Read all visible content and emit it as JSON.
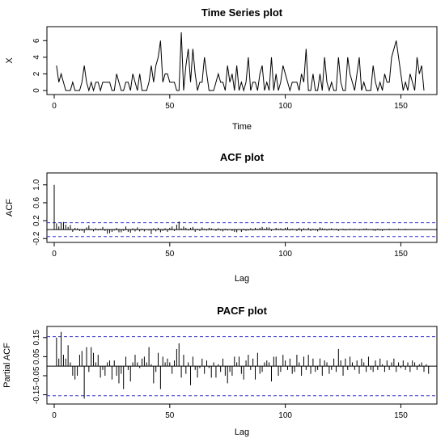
{
  "chart_data": [
    {
      "type": "line",
      "title": "Time Series plot",
      "xlabel": "Time",
      "ylabel": "X",
      "xlim": [
        0,
        160
      ],
      "ylim": [
        0,
        7
      ],
      "xticks": [
        "0",
        "50",
        "100",
        "150"
      ],
      "yticks": [
        "0",
        "2",
        "4",
        "6"
      ],
      "x_start": 1,
      "values": [
        3,
        1,
        2,
        1,
        0,
        0,
        0,
        1,
        0,
        0,
        0,
        1,
        3,
        1,
        0,
        1,
        0,
        1,
        1,
        0,
        1,
        1,
        1,
        1,
        0,
        0,
        2,
        1,
        0,
        0,
        1,
        1,
        0,
        2,
        1,
        0,
        2,
        0,
        0,
        0,
        1,
        3,
        1,
        3,
        4,
        6,
        1,
        2,
        2,
        1,
        1,
        1,
        0,
        0,
        7,
        0,
        3,
        5,
        1,
        5,
        2,
        0,
        1,
        1,
        4,
        2,
        0,
        0,
        0,
        1,
        2,
        1,
        1,
        0,
        3,
        1,
        2,
        0,
        3,
        0,
        1,
        0,
        1,
        4,
        0,
        1,
        1,
        0,
        2,
        3,
        0,
        1,
        0,
        4,
        0,
        2,
        0,
        1,
        3,
        2,
        1,
        0,
        1,
        1,
        1,
        0,
        2,
        1,
        5,
        0,
        0,
        2,
        0,
        0,
        2,
        0,
        4,
        1,
        0,
        1,
        0,
        0,
        4,
        1,
        0,
        0,
        4,
        2,
        1,
        0,
        2,
        4,
        0,
        1,
        0,
        0,
        0,
        3,
        1,
        0,
        1,
        0,
        2,
        1,
        1,
        4,
        5,
        6,
        4,
        2,
        0,
        1,
        0,
        2,
        1,
        0,
        4,
        2,
        3,
        0
      ]
    },
    {
      "type": "bar",
      "title": "ACF plot",
      "xlabel": "Lag",
      "ylabel": "ACF",
      "xlim": [
        0,
        160
      ],
      "ylim": [
        -0.25,
        1.05
      ],
      "xticks": [
        "0",
        "50",
        "100",
        "150"
      ],
      "yticks": [
        "-0.2",
        "0.2",
        "0.6",
        "1.0"
      ],
      "ci": [
        0.155,
        -0.155
      ],
      "x_start": 0,
      "values": [
        1.0,
        0.14,
        0.07,
        0.16,
        0.17,
        0.11,
        0.06,
        0.1,
        -0.05,
        0.04,
        0.03,
        -0.03,
        -0.03,
        -0.07,
        0.05,
        0.09,
        0.02,
        -0.04,
        0.03,
        -0.02,
        0.02,
        0.06,
        -0.03,
        -0.09,
        -0.08,
        -0.05,
        -0.02,
        0.04,
        -0.06,
        -0.06,
        -0.03,
        0.07,
        -0.05,
        -0.07,
        0.03,
        -0.04,
        0.05,
        -0.04,
        0.02,
        -0.04,
        0.01,
        -0.02,
        -0.1,
        0.03,
        -0.04,
        0.04,
        -0.06,
        -0.03,
        0.03,
        -0.05,
        0.04,
        0.07,
        -0.03,
        0.11,
        0.18,
        0.03,
        0.07,
        0.04,
        -0.02,
        0.04,
        0.06,
        -0.05,
        0.02,
        -0.03,
        0.05,
        0.02,
        -0.02,
        0.04,
        0.03,
        0.01,
        -0.03,
        0.03,
        -0.02,
        -0.04,
        0.02,
        -0.02,
        0.01,
        -0.03,
        -0.05,
        -0.06,
        0.01,
        -0.05,
        0.02,
        -0.03,
        -0.02,
        0.03,
        -0.02,
        0.04,
        0.02,
        0.04,
        0.06,
        0.02,
        0.05,
        0.05,
        -0.03,
        0.01,
        0.04,
        0.02,
        0.03,
        -0.02,
        0.04,
        0.05,
        -0.02,
        0.02,
        0.01,
        -0.03,
        0.04,
        -0.04,
        0.03,
        -0.01,
        0.04,
        -0.03,
        0.02,
        -0.02,
        -0.04,
        0.05,
        0.03,
        0.02,
        -0.02,
        0.02,
        0.03,
        -0.01,
        0.02,
        -0.03,
        0.01,
        0.02,
        -0.02,
        0.01,
        0.02,
        -0.01,
        0.02,
        0.01,
        -0.02,
        -0.01,
        0.02,
        0.03,
        -0.01,
        0.01,
        -0.02,
        -0.03,
        0.02,
        -0.02,
        -0.03,
        -0.01,
        0.01,
        0.02,
        -0.01,
        0.01,
        0.01,
        0.02,
        -0.01,
        0.01,
        0.02,
        -0.01,
        0.01,
        0.01,
        0.01,
        0.01,
        0.0,
        0.01
      ]
    },
    {
      "type": "bar",
      "title": "PACF plot",
      "xlabel": "Lag",
      "ylabel": "Partial ACF",
      "xlim": [
        0,
        160
      ],
      "ylim": [
        -0.19,
        0.2
      ],
      "xticks": [
        "0",
        "50",
        "100",
        "150"
      ],
      "yticks": [
        "-0.15",
        "-0.05",
        "0.05",
        "0.15"
      ],
      "ci": [
        0.155,
        -0.155
      ],
      "x_start": 1,
      "values": [
        0.15,
        0.04,
        0.18,
        0.06,
        0.04,
        0.11,
        0.02,
        -0.05,
        -0.07,
        -0.05,
        0.06,
        0.08,
        -0.17,
        0.1,
        -0.03,
        0.1,
        0.07,
        0.02,
        0.06,
        -0.06,
        -0.02,
        -0.05,
        0.02,
        0.03,
        -0.07,
        0.03,
        -0.05,
        -0.09,
        -0.04,
        -0.12,
        0.05,
        -0.02,
        -0.08,
        0.02,
        0.06,
        0.02,
        -0.01,
        0.04,
        0.05,
        0.02,
        0.1,
        0.01,
        -0.09,
        -0.03,
        0.07,
        -0.12,
        0.05,
        0.02,
        0.04,
        0.02,
        -0.04,
        0.03,
        0.09,
        0.12,
        -0.06,
        0.06,
        -0.04,
        0.02,
        -0.1,
        0.05,
        -0.02,
        -0.06,
        -0.01,
        0.04,
        -0.04,
        0.03,
        -0.01,
        -0.06,
        0.02,
        -0.06,
        0.01,
        -0.03,
        0.04,
        -0.05,
        -0.09,
        -0.03,
        -0.05,
        0.05,
        0.02,
        0.05,
        -0.04,
        -0.07,
        0.03,
        0.06,
        -0.02,
        0.04,
        -0.07,
        0.07,
        -0.04,
        -0.03,
        0.02,
        0.03,
        0.02,
        -0.08,
        0.05,
        0.05,
        -0.05,
        -0.03,
        0.06,
        0.03,
        -0.02,
        0.04,
        -0.04,
        -0.03,
        0.06,
        0.02,
        -0.05,
        0.05,
        -0.02,
        0.06,
        -0.04,
        0.04,
        -0.03,
        -0.02,
        0.04,
        -0.05,
        0.03,
        0.02,
        -0.04,
        -0.02,
        0.04,
        -0.03,
        0.09,
        0.03,
        -0.05,
        0.04,
        -0.02,
        0.05,
        0.02,
        -0.02,
        0.03,
        -0.04,
        0.04,
        0.02,
        -0.03,
        0.05,
        -0.02,
        -0.03,
        0.03,
        -0.02,
        0.04,
        0.01,
        -0.03,
        0.03,
        -0.02,
        0.02,
        0.04,
        -0.03,
        0.02,
        -0.01,
        0.03,
        -0.02,
        0.02,
        -0.03,
        0.03,
        0.02,
        -0.02,
        0.01,
        0.02,
        -0.03,
        0.01,
        -0.04
      ]
    }
  ]
}
